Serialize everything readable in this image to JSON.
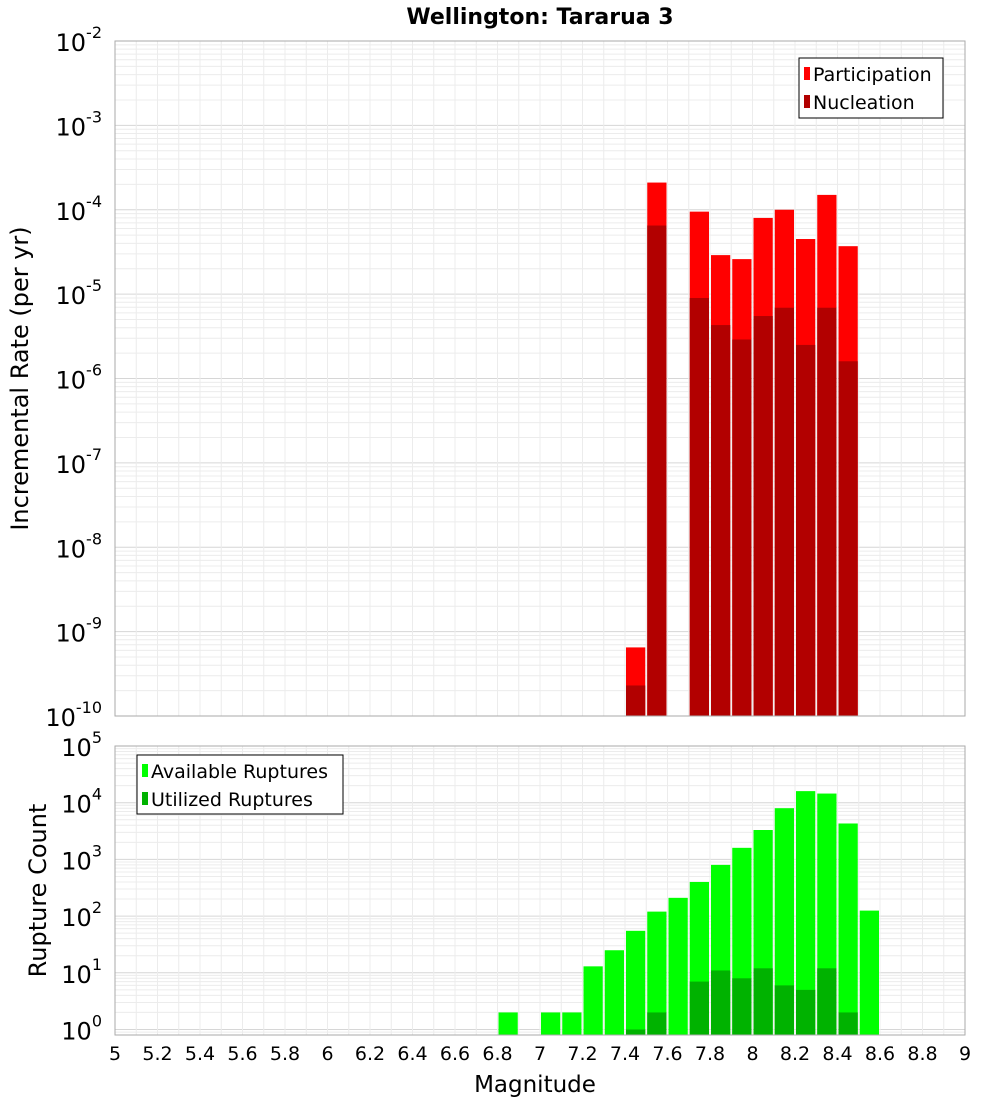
{
  "chart_data": {
    "title": "Wellington: Tararua 3",
    "type": "bar",
    "xlabel": "Magnitude",
    "xlim": [
      5,
      9
    ],
    "xticks": [
      5,
      5.2,
      5.4,
      5.6,
      5.8,
      6,
      6.2,
      6.4,
      6.6,
      6.8,
      7,
      7.2,
      7.4,
      7.6,
      7.8,
      8,
      8.2,
      8.4,
      8.6,
      8.8,
      9
    ],
    "xtick_labels": [
      "5",
      "5.2",
      "5.4",
      "5.6",
      "5.8",
      "6",
      "6.2",
      "6.4",
      "6.6",
      "6.8",
      "7",
      "7.2",
      "7.4",
      "7.6",
      "7.8",
      "8",
      "8.2",
      "8.4",
      "8.6",
      "8.8",
      "9"
    ],
    "bin_width": 0.1,
    "grid": true,
    "panels": [
      {
        "ylabel": "Incremental Rate (per yr)",
        "yscale": "log",
        "ylim": [
          1e-10,
          0.01
        ],
        "yticks": [
          {
            "base": "10",
            "exp": "-10"
          },
          {
            "base": "10",
            "exp": "-9"
          },
          {
            "base": "10",
            "exp": "-8"
          },
          {
            "base": "10",
            "exp": "-7"
          },
          {
            "base": "10",
            "exp": "-6"
          },
          {
            "base": "10",
            "exp": "-5"
          },
          {
            "base": "10",
            "exp": "-4"
          },
          {
            "base": "10",
            "exp": "-3"
          },
          {
            "base": "10",
            "exp": "-2"
          }
        ],
        "legend_position": "top-right",
        "series": [
          {
            "name": "Participation",
            "color": "#ff0000",
            "x": [
              7.45,
              7.55,
              7.75,
              7.85,
              7.95,
              8.05,
              8.15,
              8.25,
              8.35,
              8.45
            ],
            "values": [
              6.5e-10,
              0.00021,
              9.5e-05,
              2.9e-05,
              2.6e-05,
              8e-05,
              0.0001,
              4.5e-05,
              0.00015,
              3.7e-05
            ]
          },
          {
            "name": "Nucleation",
            "color": "#b20000",
            "x": [
              7.45,
              7.55,
              7.75,
              7.85,
              7.95,
              8.05,
              8.15,
              8.25,
              8.35,
              8.45
            ],
            "values": [
              2.3e-10,
              6.5e-05,
              9e-06,
              4.3e-06,
              2.9e-06,
              5.5e-06,
              6.9e-06,
              2.5e-06,
              6.9e-06,
              1.6e-06
            ]
          }
        ]
      },
      {
        "ylabel": "Rupture Count",
        "yscale": "log",
        "ylim": [
          0.8,
          100000.0
        ],
        "yticks": [
          {
            "value": 1,
            "base": "10",
            "exp": "0"
          },
          {
            "value": 10,
            "base": "10",
            "exp": "1"
          },
          {
            "value": 100,
            "base": "10",
            "exp": "2"
          },
          {
            "value": 1000,
            "base": "10",
            "exp": "3"
          },
          {
            "value": 10000,
            "base": "10",
            "exp": "4"
          },
          {
            "value": 100000,
            "base": "10",
            "exp": "5"
          }
        ],
        "legend_position": "top-left",
        "series": [
          {
            "name": "Available Ruptures",
            "color": "#00ff00",
            "x": [
              6.85,
              7.05,
              7.15,
              7.25,
              7.35,
              7.45,
              7.55,
              7.65,
              7.75,
              7.85,
              7.95,
              8.05,
              8.15,
              8.25,
              8.35,
              8.45,
              8.55
            ],
            "values": [
              2,
              2,
              2,
              13,
              25,
              55,
              120,
              210,
              400,
              800,
              1600,
              3300,
              8000,
              16000,
              14500,
              4300,
              125
            ]
          },
          {
            "name": "Utilized Ruptures",
            "color": "#00b200",
            "x": [
              7.45,
              7.55,
              7.75,
              7.85,
              7.95,
              8.05,
              8.15,
              8.25,
              8.35,
              8.45
            ],
            "values": [
              1,
              2,
              7,
              11,
              8,
              12,
              6,
              5,
              12,
              2
            ]
          }
        ]
      }
    ]
  }
}
